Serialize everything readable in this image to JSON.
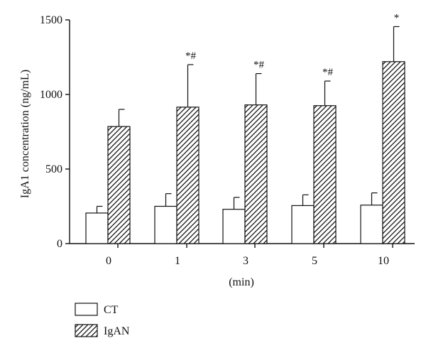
{
  "chart_data": {
    "type": "bar",
    "title": "",
    "xlabel": "(min)",
    "ylabel": "IgA1 concentration (ng/mL)",
    "ylim": [
      0,
      1500
    ],
    "yticks": [
      "0",
      "500",
      "1000",
      "1500"
    ],
    "categories": [
      "0",
      "1",
      "3",
      "5",
      "10"
    ],
    "series": [
      {
        "name": "CT",
        "fill": "plain",
        "values": [
          205,
          250,
          230,
          255,
          258
        ],
        "errors": [
          45,
          85,
          80,
          72,
          82
        ]
      },
      {
        "name": "IgAN",
        "fill": "hatched",
        "values": [
          785,
          915,
          930,
          925,
          1220
        ],
        "errors": [
          115,
          285,
          210,
          165,
          235
        ]
      }
    ],
    "annotations": [
      "",
      "*#",
      "*#",
      "*#",
      "*"
    ],
    "legend_position": "bottom-left",
    "grid": false
  },
  "colors": {
    "axis": "#111111",
    "bar_fill": "#ffffff",
    "hatch": "#111111",
    "background": "#ffffff"
  }
}
